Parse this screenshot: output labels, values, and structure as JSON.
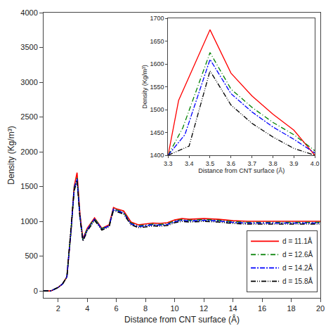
{
  "chart_data": [
    {
      "type": "line",
      "xlabel": "Distance from CNT surface (Å)",
      "ylabel": "Density (Kg/m³)",
      "xlim": [
        1,
        20
      ],
      "ylim": [
        -100,
        4000
      ],
      "xticks": [
        2,
        4,
        6,
        8,
        10,
        12,
        14,
        16,
        18,
        20
      ],
      "yticks": [
        0,
        500,
        1000,
        1500,
        2000,
        2500,
        3000,
        3500,
        4000
      ],
      "grid": false,
      "legend": "lower right",
      "series": [
        {
          "name": "d = 11.1Å",
          "color": "red",
          "line_style": "solid",
          "x": [
            1.0,
            1.5,
            2.0,
            2.3,
            2.6,
            2.9,
            3.1,
            3.3,
            3.5,
            3.7,
            4.0,
            4.5,
            5.0,
            5.5,
            5.8,
            6.0,
            6.5,
            7.0,
            7.5,
            8.0,
            8.5,
            9.0,
            9.5,
            10.0,
            10.5,
            11.0,
            12.0,
            13.0,
            14.0,
            15.0,
            16.0,
            17.0,
            18.0,
            19.0,
            20.0
          ],
          "values": [
            0.0,
            0.0,
            50.0,
            100.0,
            200.0,
            900.0,
            1500.0,
            1700.0,
            1100.0,
            750.0,
            900.0,
            1050.0,
            900.0,
            950.0,
            1200.0,
            1180.0,
            1150.0,
            990.0,
            950.0,
            960.0,
            975.0,
            970.0,
            980.0,
            1020.0,
            1040.0,
            1030.0,
            1040.0,
            1030.0,
            1010.0,
            1000.0,
            1000.0,
            1000.0,
            1000.0,
            1000.0,
            1000.0
          ]
        },
        {
          "name": "d = 12.6Å",
          "color": "green",
          "line_style": "dashdot",
          "x": [
            1.0,
            1.5,
            2.0,
            2.3,
            2.6,
            2.9,
            3.1,
            3.3,
            3.5,
            3.7,
            4.0,
            4.5,
            5.0,
            5.5,
            5.8,
            6.0,
            6.5,
            7.0,
            7.5,
            8.0,
            8.5,
            9.0,
            9.5,
            10.0,
            10.5,
            11.0,
            12.0,
            13.0,
            14.0,
            15.0,
            16.0,
            17.0,
            18.0,
            19.0,
            20.0
          ],
          "values": [
            0.0,
            0.0,
            50.0,
            100.0,
            200.0,
            900.0,
            1480.0,
            1625.0,
            1080.0,
            740.0,
            890.0,
            1040.0,
            895.0,
            940.0,
            1185.0,
            1165.0,
            1130.0,
            975.0,
            935.0,
            945.0,
            960.0,
            955.0,
            965.0,
            1005.0,
            1025.0,
            1015.0,
            1025.0,
            1015.0,
            995.0,
            985.0,
            985.0,
            985.0,
            985.0,
            985.0,
            985.0
          ]
        },
        {
          "name": "d = 14.2Å",
          "color": "blue",
          "line_style": "longdashdot",
          "x": [
            1.0,
            1.5,
            2.0,
            2.3,
            2.6,
            2.9,
            3.1,
            3.3,
            3.5,
            3.7,
            4.0,
            4.5,
            5.0,
            5.5,
            5.8,
            6.0,
            6.5,
            7.0,
            7.5,
            8.0,
            8.5,
            9.0,
            9.5,
            10.0,
            10.5,
            11.0,
            12.0,
            13.0,
            14.0,
            15.0,
            16.0,
            17.0,
            18.0,
            19.0,
            20.0
          ],
          "values": [
            0.0,
            0.0,
            50.0,
            100.0,
            200.0,
            900.0,
            1470.0,
            1610.0,
            1065.0,
            730.0,
            880.0,
            1030.0,
            888.0,
            935.0,
            1175.0,
            1155.0,
            1120.0,
            965.0,
            925.0,
            935.0,
            950.0,
            945.0,
            955.0,
            995.0,
            1015.0,
            1005.0,
            1015.0,
            1005.0,
            985.0,
            975.0,
            975.0,
            975.0,
            975.0,
            975.0,
            975.0
          ]
        },
        {
          "name": "d = 15.8Å",
          "color": "black",
          "line_style": "dashdotdot",
          "x": [
            1.0,
            1.5,
            2.0,
            2.3,
            2.6,
            2.9,
            3.1,
            3.3,
            3.5,
            3.7,
            4.0,
            4.5,
            5.0,
            5.5,
            5.8,
            6.0,
            6.5,
            7.0,
            7.5,
            8.0,
            8.5,
            9.0,
            9.5,
            10.0,
            10.5,
            11.0,
            12.0,
            13.0,
            14.0,
            15.0,
            16.0,
            17.0,
            18.0,
            19.0,
            20.0
          ],
          "values": [
            0.0,
            0.0,
            50.0,
            100.0,
            200.0,
            900.0,
            1440.0,
            1585.0,
            1040.0,
            715.0,
            860.0,
            1015.0,
            875.0,
            920.0,
            1160.0,
            1140.0,
            1105.0,
            950.0,
            910.0,
            920.0,
            935.0,
            930.0,
            940.0,
            980.0,
            1000.0,
            990.0,
            1000.0,
            990.0,
            970.0,
            960.0,
            960.0,
            960.0,
            960.0,
            960.0,
            960.0
          ]
        }
      ]
    },
    {
      "type": "line",
      "xlabel": "Distance from CNT surface (Å)",
      "ylabel": "Density (Kg/m³)",
      "xlim": [
        3.3,
        4.0
      ],
      "ylim": [
        1400,
        1700
      ],
      "xticks": [
        3.3,
        3.4,
        3.5,
        3.6,
        3.7,
        3.8,
        3.9,
        {
          "value": 4.0,
          "label": "4.0"
        }
      ],
      "yticks": [
        1400,
        1450,
        1500,
        1550,
        1600,
        1650,
        1700
      ],
      "grid": false,
      "series": [
        {
          "color": "red",
          "line_style": "solid",
          "x": [
            3.3,
            3.35,
            3.5,
            3.6,
            3.7,
            3.8,
            3.9,
            4.0
          ],
          "values": [
            1400.0,
            1520.0,
            1675.0,
            1580.0,
            1530.0,
            1490.0,
            1455.0,
            1400.0
          ]
        },
        {
          "color": "green",
          "line_style": "dashdot",
          "x": [
            3.3,
            3.37,
            3.5,
            3.6,
            3.7,
            3.8,
            3.9,
            4.0
          ],
          "values": [
            1400.0,
            1460.0,
            1625.0,
            1545.0,
            1505.0,
            1472.0,
            1445.0,
            1410.0
          ]
        },
        {
          "color": "blue",
          "line_style": "longdashdot",
          "x": [
            3.3,
            3.38,
            3.5,
            3.6,
            3.7,
            3.8,
            3.9,
            4.0
          ],
          "values": [
            1400.0,
            1445.0,
            1610.0,
            1535.0,
            1495.0,
            1462.0,
            1435.0,
            1405.0
          ]
        },
        {
          "color": "black",
          "line_style": "dashdotdot",
          "x": [
            3.3,
            3.4,
            3.5,
            3.6,
            3.7,
            3.8,
            3.9,
            4.0
          ],
          "values": [
            1400.0,
            1420.0,
            1585.0,
            1510.0,
            1470.0,
            1440.0,
            1415.0,
            1400.0
          ]
        }
      ]
    }
  ]
}
